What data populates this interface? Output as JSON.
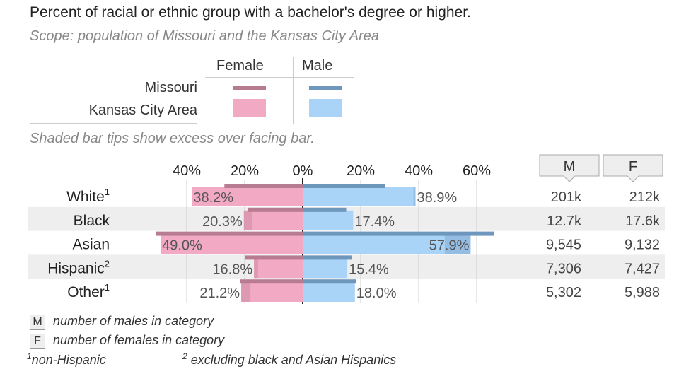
{
  "title": "Percent of racial or ethnic group with a bachelor's degree or higher.",
  "subtitle": "Scope: population of Missouri and the Kansas City Area",
  "legend": {
    "col_female": "Female",
    "col_male": "Male",
    "row_missouri": "Missouri",
    "row_kc": "Kansas City Area"
  },
  "hint": "Shaded bar tips show excess over facing bar.",
  "colors": {
    "female_kc": "#f2a9c4",
    "female_mo": "#b87c90",
    "male_kc": "#a9d3f7",
    "male_mo": "#6f96bd",
    "row_band": "#eeeeee"
  },
  "chart_data": {
    "type": "bar",
    "orientation": "horizontal-butterfly",
    "categories": [
      "White",
      "Black",
      "Asian",
      "Hispanic",
      "Other"
    ],
    "category_superscripts": [
      "1",
      "",
      "",
      "2",
      "1"
    ],
    "female_tick_labels": [
      "40%",
      "20%"
    ],
    "zero_tick_label": "0%",
    "male_tick_labels": [
      "20%",
      "40%",
      "60%"
    ],
    "xlim_female": [
      0,
      55
    ],
    "xlim_male": [
      0,
      70
    ],
    "series": [
      {
        "name": "Female",
        "region": "Kansas City Area",
        "values": [
          38.2,
          20.3,
          49.0,
          16.8,
          21.2
        ]
      },
      {
        "name": "Male",
        "region": "Kansas City Area",
        "values": [
          38.9,
          17.4,
          57.9,
          15.4,
          18.0
        ]
      },
      {
        "name": "Female",
        "region": "Missouri",
        "values": [
          27.0,
          19.0,
          50.5,
          20.0,
          21.5
        ]
      },
      {
        "name": "Male",
        "region": "Missouri",
        "values": [
          28.5,
          15.0,
          66.0,
          17.0,
          18.5
        ]
      }
    ],
    "data_labels_female": [
      "38.2%",
      "20.3%",
      "49.0%",
      "16.8%",
      "21.2%"
    ],
    "data_labels_male": [
      "38.9%",
      "17.4%",
      "57.9%",
      "15.4%",
      "18.0%"
    ],
    "count_headers": [
      "M",
      "F"
    ],
    "counts_male": [
      "201k",
      "12.7k",
      "9,545",
      "7,306",
      "5,302"
    ],
    "counts_female": [
      "212k",
      "17.6k",
      "9,132",
      "7,427",
      "5,988"
    ]
  },
  "footnotes": {
    "m_key": "M",
    "m_text": "number of males in category",
    "f_key": "F",
    "f_text": "number of females in category",
    "note1_sup": "1",
    "note1_text": "non-Hispanic",
    "note2_sup": "2",
    "note2_text": "excluding black and Asian Hispanics"
  }
}
